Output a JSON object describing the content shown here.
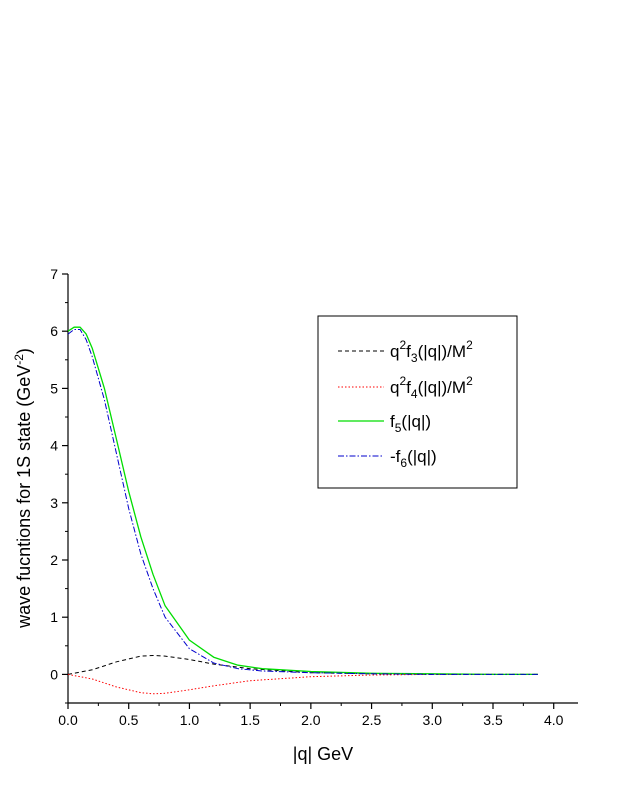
{
  "chart_data": {
    "type": "line",
    "xlabel": "|q|   GeV",
    "ylabel": "wave fucntions for 1S state (GeV⁻²)",
    "xlim": [
      0.0,
      4.2
    ],
    "ylim": [
      -0.5,
      7.0
    ],
    "xticks": [
      "0.0",
      "0.5",
      "1.0",
      "1.5",
      "2.0",
      "2.5",
      "3.0",
      "3.5",
      "4.0"
    ],
    "yticks": [
      "0",
      "1",
      "2",
      "3",
      "4",
      "5",
      "6",
      "7"
    ],
    "grid": false,
    "legend_position": "top-right",
    "series": [
      {
        "name": "q²f₃(|q|)/M²",
        "color": "#000000",
        "style": "dashed",
        "x": [
          0.0,
          0.2,
          0.4,
          0.6,
          0.7,
          0.8,
          1.0,
          1.2,
          1.5,
          2.0,
          2.5,
          3.0,
          3.5,
          3.87
        ],
        "y": [
          0.0,
          0.08,
          0.22,
          0.32,
          0.33,
          0.32,
          0.26,
          0.18,
          0.1,
          0.03,
          0.01,
          0.0,
          0.0,
          0.0
        ]
      },
      {
        "name": "q²f₄(|q|)/M²",
        "color": "#ff0000",
        "style": "dotted",
        "x": [
          0.0,
          0.2,
          0.4,
          0.6,
          0.7,
          0.8,
          1.0,
          1.2,
          1.5,
          2.0,
          2.5,
          3.0,
          3.5,
          3.87
        ],
        "y": [
          0.0,
          -0.08,
          -0.22,
          -0.32,
          -0.34,
          -0.33,
          -0.27,
          -0.2,
          -0.11,
          -0.04,
          -0.01,
          0.0,
          0.0,
          0.0
        ]
      },
      {
        "name": "f₅(|q|)",
        "color": "#00dd00",
        "style": "solid",
        "x": [
          0.0,
          0.05,
          0.1,
          0.15,
          0.2,
          0.3,
          0.4,
          0.5,
          0.6,
          0.7,
          0.8,
          1.0,
          1.2,
          1.4,
          1.6,
          2.0,
          2.5,
          3.0,
          3.5,
          3.87
        ],
        "y": [
          6.0,
          6.07,
          6.07,
          5.95,
          5.7,
          5.0,
          4.1,
          3.2,
          2.4,
          1.75,
          1.2,
          0.6,
          0.3,
          0.16,
          0.1,
          0.05,
          0.02,
          0.01,
          0.0,
          0.0
        ]
      },
      {
        "name": "-f₆(|q|)",
        "color": "#0000cc",
        "style": "dashdot",
        "x": [
          0.0,
          0.05,
          0.1,
          0.15,
          0.2,
          0.3,
          0.4,
          0.5,
          0.6,
          0.7,
          0.8,
          1.0,
          1.2,
          1.4,
          1.6,
          2.0,
          2.5,
          3.0,
          3.5,
          3.87
        ],
        "y": [
          5.95,
          6.03,
          6.03,
          5.85,
          5.55,
          4.8,
          3.85,
          2.9,
          2.1,
          1.5,
          1.0,
          0.45,
          0.2,
          0.1,
          0.06,
          0.03,
          0.01,
          0.0,
          0.0,
          0.0
        ]
      }
    ]
  },
  "legend": {
    "entry_1": {
      "base": "q",
      "sup1": "2",
      "mid": "f",
      "sub": "3",
      "rest": "(|q|)/M",
      "sup2": "2"
    },
    "entry_2": {
      "base": "q",
      "sup1": "2",
      "mid": "f",
      "sub": "4",
      "rest": "(|q|)/M",
      "sup2": "2"
    },
    "entry_3": {
      "base": "f",
      "sub": "5",
      "rest": "(|q|)"
    },
    "entry_4": {
      "base": "-f",
      "sub": "6",
      "rest": "(|q|)"
    }
  },
  "ylabel_parts": {
    "main": "wave fucntions for 1S state (GeV",
    "sup": "-2",
    "close": ")"
  }
}
